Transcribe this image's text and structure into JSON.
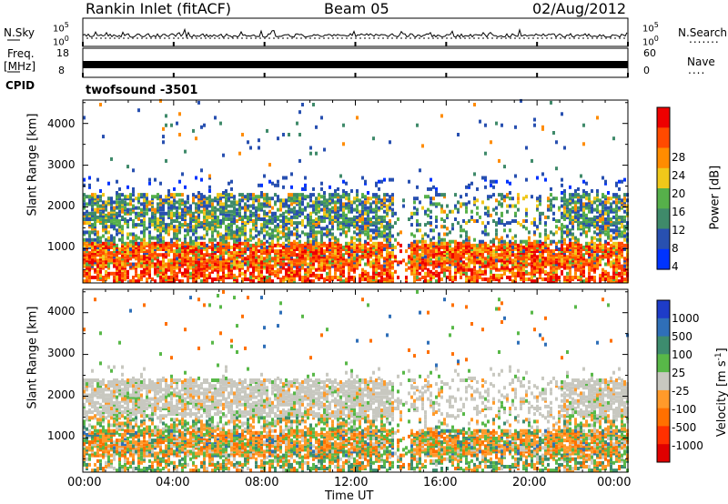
{
  "header": {
    "station": "Rankin Inlet (fitACF)",
    "beam": "Beam 05",
    "date": "02/Aug/2012"
  },
  "aux": {
    "nsky_label": "N.Sky",
    "nsearch_label": "N.Search",
    "nsearch_dots": ".......",
    "nsky_ticks": [
      "10^5",
      "10^0"
    ],
    "nsearch_ticks": [
      "10^5",
      "10^0"
    ],
    "freq_label_1": "Freq.",
    "freq_label_2": "[MHz]",
    "freq_ticks": [
      "18",
      "8"
    ],
    "nave_label": "Nave",
    "nave_dots": "....",
    "nave_ticks": [
      "60",
      "0"
    ],
    "cpid_label": "CPID",
    "cpid_value": "twofsound  -3501"
  },
  "chart_data": [
    {
      "type": "heatmap",
      "panel": "power",
      "xlabel": "",
      "ylabel": "Slant Range [km]",
      "x_ticks": [
        "00:00",
        "04:00",
        "08:00",
        "12:00",
        "16:00",
        "20:00",
        "00:00"
      ],
      "y_ticks": [
        1000,
        2000,
        3000,
        4000
      ],
      "ylim": [
        180,
        4560
      ],
      "colorbar": {
        "label": "Power [dB]",
        "ticks": [
          "4",
          "8",
          "12",
          "16",
          "20",
          "24",
          "28"
        ],
        "colors": [
          "#0033ff",
          "#2850b0",
          "#3f8a6a",
          "#56b04a",
          "#f0c81a",
          "#ff8c00",
          "#ff4a00",
          "#ee0000"
        ]
      },
      "bands": [
        {
          "range_km": [
            220,
            600
          ],
          "level": "strong, 20-30 dB",
          "dominant_color": "#ff4a00"
        },
        {
          "range_km": [
            600,
            1150
          ],
          "level": "strong, 20-28 dB",
          "dominant_color": "#ff6a00"
        },
        {
          "range_km": [
            1200,
            2300
          ],
          "level": "moderate, 8-20 dB",
          "dominant_color": "#3f8a6a"
        }
      ]
    },
    {
      "type": "heatmap",
      "panel": "velocity",
      "xlabel": "Time UT",
      "ylabel": "Slant Range [km]",
      "x_ticks": [
        "00:00",
        "04:00",
        "08:00",
        "12:00",
        "16:00",
        "20:00",
        "00:00"
      ],
      "y_ticks": [
        1000,
        2000,
        3000,
        4000
      ],
      "ylim": [
        180,
        4560
      ],
      "colorbar": {
        "label": "Velocity [m s^-1]",
        "ticks": [
          "1000",
          "500",
          "100",
          "25",
          "-25",
          "-100",
          "-500",
          "-1000"
        ],
        "colors": [
          "#1e3cc8",
          "#2f6fb8",
          "#3d8c6e",
          "#58b848",
          "#c8c8c0",
          "#ff9a2a",
          "#ff7000",
          "#ff3000",
          "#e00000"
        ]
      },
      "bands": [
        {
          "range_km": [
            220,
            1200
          ],
          "level": "mixed, mostly -100 to -500 (orange) and 100 to 500 (green)",
          "dominant_color": "#ff8a1a"
        },
        {
          "range_km": [
            1500,
            2400
          ],
          "level": "ground scatter, -25 to 25",
          "dominant_color": "#c8c8c0"
        }
      ]
    }
  ]
}
